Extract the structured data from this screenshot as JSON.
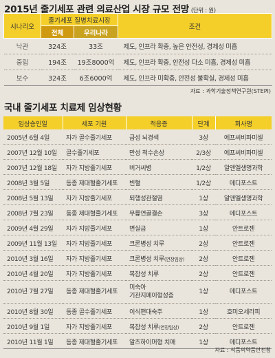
{
  "section1": {
    "title": "2015년 줄기세포 관련 의료산업 시장 규모 전망",
    "unit": "(단위 : 원)",
    "headers": {
      "scenario": "시나리오",
      "market": "줄기세포 질병치료시장",
      "total": "전체",
      "korea": "우리나라",
      "condition": "조건"
    },
    "rows": [
      {
        "scenario": "낙관",
        "total": "324조",
        "korea": "33조",
        "condition": "제도, 인프라 확충, 높은 안전성, 경제성 미흡"
      },
      {
        "scenario": "중립",
        "total": "194조",
        "korea": "19조8000억",
        "condition": "제도, 인프라 확충, 안전성 다소 미흡, 경제성 미흡"
      },
      {
        "scenario": "보수",
        "total": "324조",
        "korea": "6조6000억",
        "condition": "제도, 인프라 미확충, 안전성 불확실, 경제성 미흡"
      }
    ],
    "source": "자료 : 과학기술정책연구원(STEPI)"
  },
  "section2": {
    "title": "국내 줄기세포 치료제 임상현황",
    "headers": {
      "date": "임상승인일",
      "source": "세포 기원",
      "indication": "적응증",
      "phase": "단계",
      "company": "회사명"
    },
    "rows": [
      {
        "date": "2005년 6월 4일",
        "source": "자가 골수줄기세포",
        "indication": "급성 뇌경색",
        "note": "",
        "phase": "3상",
        "company": "에프씨비파미셀"
      },
      {
        "date": "2007년 12월 10일",
        "source": "골수줄기세포",
        "indication": "만성 척수손상",
        "note": "",
        "phase": "2/3상",
        "company": "에프씨비파미셀"
      },
      {
        "date": "2007년 12월 18일",
        "source": "자가 지방줄기세포",
        "indication": "버거씨병",
        "note": "",
        "phase": "1/2상",
        "company": "알앤엘생명과학"
      },
      {
        "date": "2008년 3월 5일",
        "source": "동종 제대혈줄기세포",
        "indication": "빈혈",
        "note": "",
        "phase": "1/2상",
        "company": "메디포스트"
      },
      {
        "date": "2008년 5월 13일",
        "source": "자가 지방줄기세포",
        "indication": "퇴행성관절염",
        "note": "",
        "phase": "1상",
        "company": "알앤엘생명과학"
      },
      {
        "date": "2008년 7월 23일",
        "source": "동종 제대혈줄기세포",
        "indication": "무릎연골결손",
        "note": "",
        "phase": "3상",
        "company": "메디포스트"
      },
      {
        "date": "2009년 4월 29일",
        "source": "자가 지방줄기세포",
        "indication": "변실금",
        "note": "",
        "phase": "1상",
        "company": "안트로젠"
      },
      {
        "date": "2009년 11월 13일",
        "source": "자가 지방줄기세포",
        "indication": "크론병성 치루",
        "note": "",
        "phase": "2상",
        "company": "안트로젠"
      },
      {
        "date": "2010년 3월 16일",
        "source": "자가 지방줄기세포",
        "indication": "크론병성 치루",
        "note": "(연장임상)",
        "phase": "2상",
        "company": "안트로젠"
      },
      {
        "date": "2010년 4월 20일",
        "source": "자가 지방줄기세포",
        "indication": "복잡성 치루",
        "note": "",
        "phase": "2상",
        "company": "안트로젠"
      },
      {
        "date": "2010년 7월 27일",
        "source": "동종 제대혈줄기세포",
        "indication": "미숙아",
        "note": "",
        "indication2": "기관지폐이형성증",
        "phase": "1상",
        "company": "메디포스트"
      },
      {
        "date": "2010년 8월 30일",
        "source": "동종 골수줄기세포",
        "indication": "이식편대숙주",
        "note": "",
        "phase": "1상",
        "company": "호미오세라피"
      },
      {
        "date": "2010년 9월 1일",
        "source": "자가 지방줄기세포",
        "indication": "복잡성 치루",
        "note": "(연장임상)",
        "phase": "2상",
        "company": "안트로젠"
      },
      {
        "date": "2010년 11월 1일",
        "source": "동종 제대혈줄기세포",
        "indication": "알츠하이머형 치매",
        "note": "",
        "phase": "1상",
        "company": "메디포스트"
      }
    ],
    "source": "자료 : 식품의약품안전청"
  }
}
